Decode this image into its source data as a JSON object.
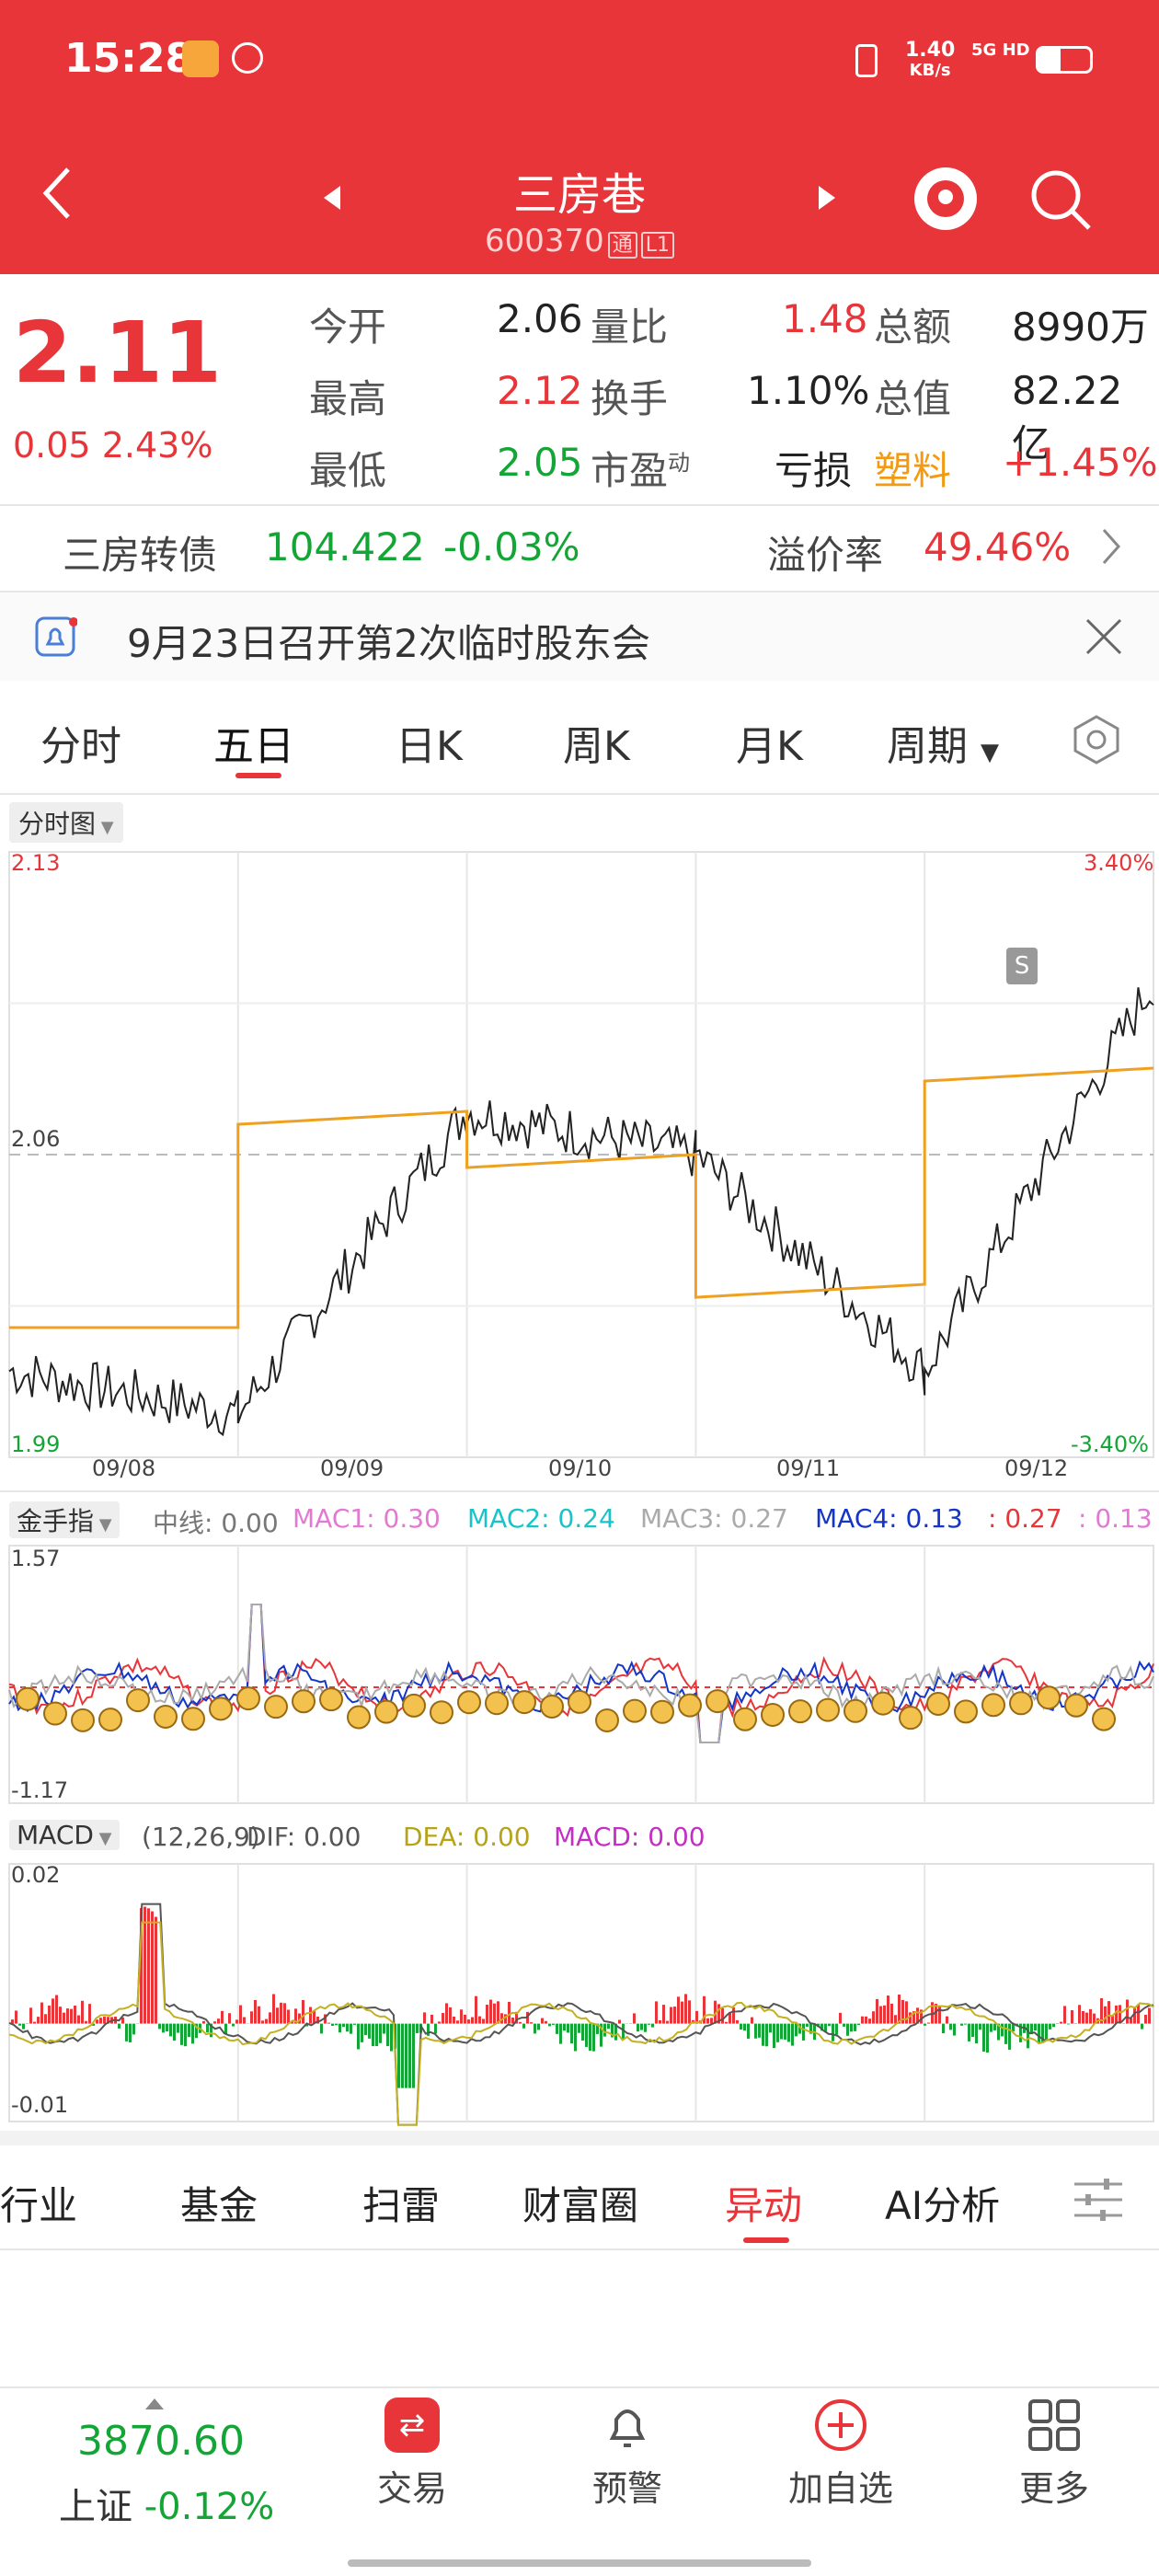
{
  "status_bar": {
    "time": "15:28",
    "network_speed": "1.40",
    "network_unit": "KB/s",
    "network_type": "5G HD"
  },
  "nav": {
    "title": "三房巷",
    "code": "600370",
    "badge1": "通",
    "badge2": "L1"
  },
  "quote": {
    "price": "2.11",
    "change": "0.05",
    "change_pct": "2.43%",
    "rows": [
      {
        "l1": "今开",
        "v1": "2.06",
        "l2": "量比",
        "v2": "1.48",
        "l3": "总额",
        "v3": "8990万"
      },
      {
        "l1": "最高",
        "v1": "2.12",
        "l2": "换手",
        "v2": "1.10%",
        "l3": "总值",
        "v3": "82.22亿"
      },
      {
        "l1": "最低",
        "v1": "2.05",
        "l2": "市盈",
        "l2sup": "动",
        "v2": "亏损",
        "l3": "塑料",
        "v3": "+1.45%"
      }
    ]
  },
  "bond": {
    "name": "三房转债",
    "price": "104.422",
    "change": "-0.03%",
    "premium_label": "溢价率",
    "premium": "49.46%"
  },
  "notice": {
    "text": "9月23日召开第2次临时股东会"
  },
  "tabs": [
    "分时",
    "五日",
    "日K",
    "周K",
    "月K",
    "周期"
  ],
  "active_tab": "五日",
  "main_chart": {
    "selector": "分时图",
    "y_max": "2.13",
    "y_mid": "2.06",
    "y_min": "1.99",
    "pct_max": "3.40%",
    "pct_min": "-3.40%",
    "dates": [
      "09/08",
      "09/09",
      "09/10",
      "09/11",
      "09/12"
    ],
    "marker": "S"
  },
  "chart_data": {
    "type": "line",
    "title": "",
    "x": [
      "09/08",
      "09/09",
      "09/10",
      "09/11",
      "09/12"
    ],
    "ylim": [
      1.99,
      2.13
    ],
    "series": [
      {
        "values": [
          2.0,
          2.07,
          2.06,
          2.01,
          2.1
        ]
      },
      {
        "values": [
          2.02,
          2.07,
          2.06,
          2.03,
          2.08
        ]
      }
    ]
  },
  "indicator1": {
    "selector": "金手指",
    "mid": "中线: 0.00",
    "mac1": "MAC1: 0.30",
    "mac2": "MAC2: 0.24",
    "mac3": "MAC3: 0.27",
    "mac4": "MAC4: 0.13",
    "extra1": ": 0.27",
    "extra2": ": 0.13",
    "y_max": "1.57",
    "y_min": "-1.17"
  },
  "macd": {
    "selector": "MACD",
    "params": "(12,26,9)",
    "dif": "DIF: 0.00",
    "dea": "DEA: 0.00",
    "macd": "MACD: 0.00",
    "y_max": "0.02",
    "y_min": "-0.01"
  },
  "bottom_tabs": [
    "行业",
    "基金",
    "扫雷",
    "财富圈",
    "异动",
    "AI分析"
  ],
  "active_bottom_tab": "异动",
  "footer": {
    "index_value": "3870.60",
    "index_name": "上证",
    "index_change": "-0.12%",
    "items": [
      {
        "label": "交易"
      },
      {
        "label": "预警"
      },
      {
        "label": "加自选"
      },
      {
        "label": "更多"
      }
    ]
  },
  "colors": {
    "brand": "#e8353a",
    "up": "#e8353a",
    "down": "#13a535",
    "avg": "#f0a020"
  }
}
